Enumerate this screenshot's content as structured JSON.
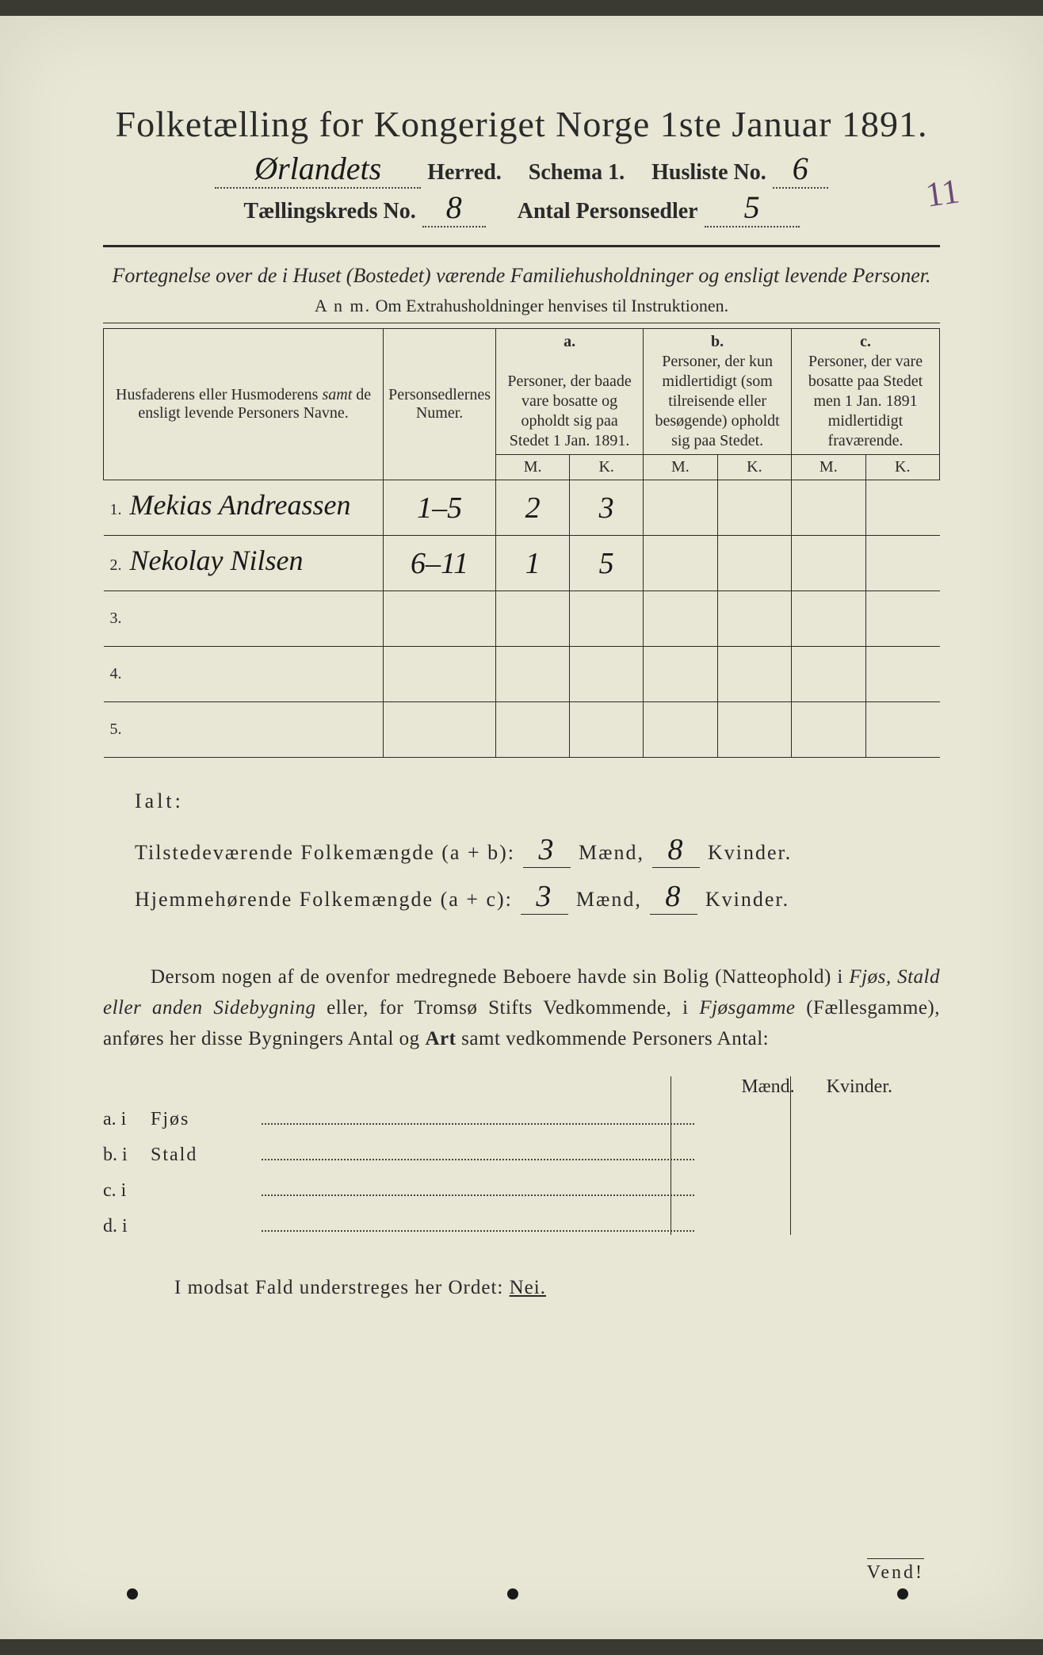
{
  "title": "Folketælling for Kongeriget Norge 1ste Januar 1891.",
  "header": {
    "herred_value": "Ørlandets",
    "herred_label": "Herred.",
    "schema_label": "Schema 1.",
    "husliste_label": "Husliste No.",
    "husliste_value": "6",
    "kreds_label": "Tællingskreds No.",
    "kreds_value": "8",
    "antal_label": "Antal Personsedler",
    "antal_value": "5",
    "antal_strike": "11"
  },
  "subtitle": "Fortegnelse over de i Huset (Bostedet) værende Familiehusholdninger og ensligt levende Personer.",
  "anm": "Anm. Om Extrahusholdninger henvises til Instruktionen.",
  "table": {
    "col_names": "Husfaderens eller Husmoderens samt de ensligt levende Personers Navne.",
    "col_num": "Personsedlernes Numer.",
    "col_a_top": "a.",
    "col_a": "Personer, der baade vare bosatte og opholdt sig paa Stedet 1 Jan. 1891.",
    "col_b_top": "b.",
    "col_b": "Personer, der kun midlertidigt (som tilreisende eller besøgende) opholdt sig paa Stedet.",
    "col_c_top": "c.",
    "col_c": "Personer, der vare bosatte paa Stedet men 1 Jan. 1891 midlertidigt fraværende.",
    "m": "M.",
    "k": "K.",
    "rows": [
      {
        "n": "1.",
        "name": "Mekias Andreassen",
        "num": "1–5",
        "am": "2",
        "ak": "3",
        "bm": "",
        "bk": "",
        "cm": "",
        "ck": ""
      },
      {
        "n": "2.",
        "name": "Nekolay Nilsen",
        "num": "6–11",
        "am": "1",
        "ak": "5",
        "bm": "",
        "bk": "",
        "cm": "",
        "ck": ""
      },
      {
        "n": "3.",
        "name": "",
        "num": "",
        "am": "",
        "ak": "",
        "bm": "",
        "bk": "",
        "cm": "",
        "ck": ""
      },
      {
        "n": "4.",
        "name": "",
        "num": "",
        "am": "",
        "ak": "",
        "bm": "",
        "bk": "",
        "cm": "",
        "ck": ""
      },
      {
        "n": "5.",
        "name": "",
        "num": "",
        "am": "",
        "ak": "",
        "bm": "",
        "bk": "",
        "cm": "",
        "ck": ""
      }
    ]
  },
  "totals": {
    "ialt": "Ialt:",
    "line1_label": "Tilstedeværende Folkemængde (a + b):",
    "line2_label": "Hjemmehørende Folkemængde (a + c):",
    "maend": "Mænd,",
    "kvinder": "Kvinder.",
    "l1m": "3",
    "l1k": "8",
    "l2m": "3",
    "l2k": "8"
  },
  "para": {
    "text1": "Dersom nogen af de ovenfor medregnede Beboere havde sin Bolig (Natteophold) i ",
    "it1": "Fjøs, Stald eller anden Sidebygning",
    "text2": " eller, for Tromsø Stifts Vedkommende, i ",
    "it2": "Fjøsgamme",
    "text3": " (Fællesgamme), anføres her disse Bygningers Antal og ",
    "bold1": "Art",
    "text4": " samt vedkommende Personers Antal:"
  },
  "bygn": {
    "maend": "Mænd.",
    "kvinder": "Kvinder.",
    "rows": [
      {
        "lab": "a.  i",
        "type": "Fjøs"
      },
      {
        "lab": "b.  i",
        "type": "Stald"
      },
      {
        "lab": "c.  i",
        "type": ""
      },
      {
        "lab": "d.  i",
        "type": ""
      }
    ]
  },
  "modsat": {
    "text": "I modsat Fald understreges her Ordet: ",
    "nei": "Nei."
  },
  "vend": "Vend!",
  "colors": {
    "paper": "#e8e6d4",
    "ink": "#2a2a2a",
    "handwriting": "#1a1a1a",
    "purple_strike": "#6b4a7a"
  }
}
